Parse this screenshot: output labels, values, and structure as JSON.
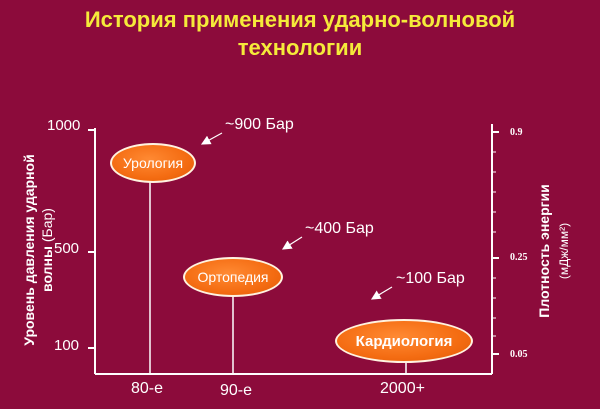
{
  "title": {
    "line1": "История применения ударно-волновой",
    "line2": "технологии"
  },
  "left_axis": {
    "label_bold": "Уровень давления ударной волны",
    "label_unit": "(Бар)",
    "ticks": [
      "1000",
      "500",
      "100"
    ]
  },
  "right_axis": {
    "label": "Плотность энергии",
    "unit": "(мДж/мм²)",
    "ticks": [
      "0.9",
      "0.25",
      "0.05"
    ]
  },
  "x_axis": {
    "ticks": [
      "80-е",
      "90-е",
      "2000+"
    ]
  },
  "milestones": [
    {
      "label": "Урология",
      "pressure": "~900 Бар"
    },
    {
      "label": "Ортопедия",
      "pressure": "~400 Бар"
    },
    {
      "label": "Кардиология",
      "pressure": "~100 Бар"
    }
  ],
  "colors": {
    "background": "#8c0b3b",
    "title": "#f5ea3a",
    "ellipse_fill": "#f46c12",
    "text": "#ffffff"
  }
}
